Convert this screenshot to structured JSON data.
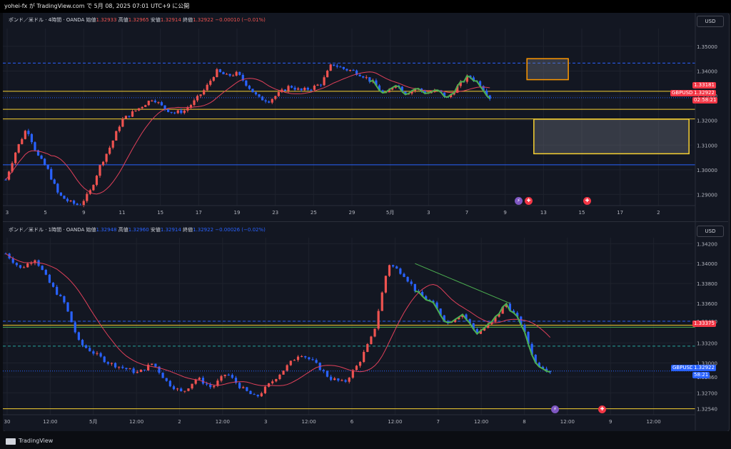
{
  "header": {
    "publish_line": "yohei-fx が TradingView.com で 5月 08, 2025 07:01 UTC+9 に公開"
  },
  "footer": {
    "brand": "TradingView"
  },
  "colors": {
    "up": "#ef5350",
    "down": "#2962ff",
    "ma": "#e0405a",
    "bg": "#131722",
    "grid": "#1e222d",
    "zigzag": "#4caf50",
    "orange": "#ff9800",
    "yellow": "#f7d031"
  },
  "top_pane": {
    "legend": {
      "symbol": "ポンド／米ドル · 4時間 · OANDA",
      "open_label": "始値",
      "open": "1.32933",
      "high_label": "高値",
      "high": "1.32965",
      "low_label": "安値",
      "low": "1.32914",
      "close_label": "終値",
      "close": "1.32922",
      "change": "−0.00010 (−0.01%)"
    },
    "currency_button": "USD",
    "tags": {
      "level": "1.33181",
      "symbol": "GBPUSD",
      "price": "1.32922",
      "countdown": "02:58:21"
    },
    "event_icon": "lightning-icon",
    "flag_icon": "uk-flag-icon",
    "chart_data": {
      "type": "candlestick",
      "y_axis_ticks": [
        "1.35000",
        "1.34000",
        "1.33000",
        "1.32000",
        "1.31000",
        "1.30000",
        "1.29000"
      ],
      "ylim": [
        1.2855,
        1.3572
      ],
      "x_axis_ticks": [
        "3",
        "5",
        "9",
        "11",
        "15",
        "17",
        "19",
        "23",
        "25",
        "29",
        "5月",
        "3",
        "7",
        "9",
        "13",
        "15",
        "17",
        "2"
      ],
      "hlines": [
        {
          "y": 1.3432,
          "style": "dashed",
          "color": "#2962ff"
        },
        {
          "y": 1.3318,
          "style": "solid",
          "color": "#f7d031"
        },
        {
          "y": 1.3245,
          "style": "solid",
          "color": "#f7d031"
        },
        {
          "y": 1.3206,
          "style": "solid",
          "color": "#f7d031"
        },
        {
          "y": 1.302,
          "style": "solid",
          "color": "#2962ff"
        },
        {
          "y": 1.3292,
          "style": "dotted",
          "color": "#2962ff"
        }
      ],
      "boxes": [
        {
          "from_tick": "9",
          "to_tick": "13",
          "y_top": 1.345,
          "y_bottom": 1.3365,
          "color": "#ff9800",
          "x0": 0.76,
          "x1": 0.82
        },
        {
          "from_tick": "9",
          "to_tick": "2",
          "y_top": 1.3205,
          "y_bottom": 1.3065,
          "color": "#f7d031",
          "x0": 0.77,
          "x1": 0.995
        }
      ],
      "path": [
        1.296,
        1.308,
        1.317,
        1.306,
        1.3,
        1.29,
        1.287,
        1.2855,
        1.291,
        1.302,
        1.31,
        1.32,
        1.323,
        1.326,
        1.329,
        1.325,
        1.323,
        1.324,
        1.328,
        1.333,
        1.34,
        1.338,
        1.339,
        1.334,
        1.329,
        1.328,
        1.331,
        1.334,
        1.332,
        1.333,
        1.335,
        1.343,
        1.341,
        1.34,
        1.338,
        1.335,
        1.33,
        1.335,
        1.331,
        1.333,
        1.331,
        1.332,
        1.329,
        1.334,
        1.338,
        1.335,
        1.3292
      ],
      "path_end_tick": "7"
    }
  },
  "bottom_pane": {
    "legend": {
      "symbol": "ポンド／米ドル · 1時間 · OANDA",
      "open_label": "始値",
      "open": "1.32948",
      "high_label": "高値",
      "high": "1.32960",
      "low_label": "安値",
      "low": "1.32914",
      "close_label": "終値",
      "close": "1.32922",
      "change": "−0.00026 (−0.02%)"
    },
    "currency_button": "USD",
    "tags": {
      "level": "1.33375",
      "symbol": "GBPUSD",
      "price": "1.32922",
      "countdown": "58:21"
    },
    "chart_data": {
      "type": "candlestick",
      "y_axis_ticks": [
        "1.34200",
        "1.34000",
        "1.33800",
        "1.33600",
        "1.33420",
        "1.33200",
        "1.33000",
        "1.32860",
        "1.32700",
        "1.32540"
      ],
      "ylim": [
        1.3248,
        1.3426
      ],
      "x_axis_ticks": [
        "30",
        "12:00",
        "5月",
        "12:00",
        "2",
        "12:00",
        "3",
        "12:00",
        "6",
        "12:00",
        "7",
        "12:00",
        "8",
        "12:00",
        "9",
        "12:00"
      ],
      "hlines": [
        {
          "y": 1.3342,
          "style": "dashed",
          "color": "#2962ff"
        },
        {
          "y": 1.3338,
          "style": "solid",
          "color": "#f7d031"
        },
        {
          "y": 1.3336,
          "style": "solid",
          "color": "#4caf50"
        },
        {
          "y": 1.3317,
          "style": "dashed",
          "color": "#26a69a"
        },
        {
          "y": 1.3292,
          "style": "dotted",
          "color": "#2962ff"
        },
        {
          "y": 1.3254,
          "style": "solid",
          "color": "#f7d031"
        }
      ],
      "path": [
        1.341,
        1.3395,
        1.3405,
        1.338,
        1.336,
        1.332,
        1.331,
        1.33,
        1.3295,
        1.329,
        1.33,
        1.328,
        1.327,
        1.3285,
        1.3275,
        1.329,
        1.3275,
        1.3265,
        1.328,
        1.3295,
        1.331,
        1.33,
        1.3285,
        1.328,
        1.33,
        1.333,
        1.34,
        1.339,
        1.337,
        1.336,
        1.334,
        1.335,
        1.333,
        1.334,
        1.336,
        1.334,
        1.33,
        1.3292
      ],
      "path_end_tick": "8",
      "trendline": {
        "from": 1.34,
        "to": 1.336
      }
    }
  }
}
